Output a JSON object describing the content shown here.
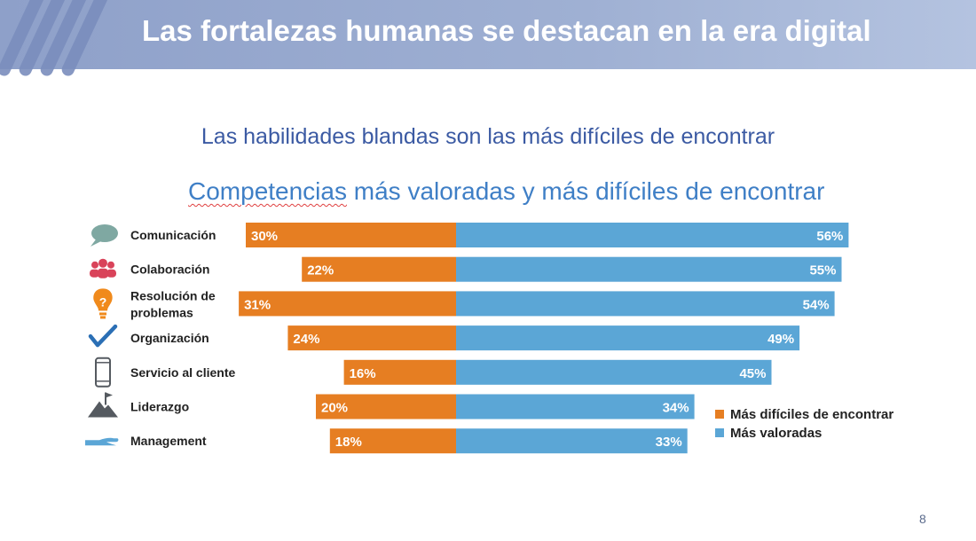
{
  "header": {
    "title": "Las fortalezas humanas se destacan en la era digital"
  },
  "subtitle": "Las habilidades blandas son las más difíciles de encontrar",
  "chart_title_underlined": "Competencias",
  "chart_title_rest": " más valoradas y más difíciles de encontrar",
  "page_number": "8",
  "colors": {
    "orange": "#e67e22",
    "blue": "#5ba6d6",
    "header": "#9aabd0"
  },
  "chart_data": {
    "type": "bar",
    "orientation": "diverging-horizontal",
    "title": "Competencias más valoradas y más difíciles de encontrar",
    "categories": [
      {
        "label": [
          "Comunicación"
        ],
        "icon": "speech-bubble-icon"
      },
      {
        "label": [
          "Colaboración"
        ],
        "icon": "people-icon"
      },
      {
        "label": [
          "Resolución de",
          "problemas"
        ],
        "icon": "lightbulb-question-icon"
      },
      {
        "label": [
          "Organización"
        ],
        "icon": "checkmark-icon"
      },
      {
        "label": [
          "Servicio al cliente"
        ],
        "icon": "phone-icon"
      },
      {
        "label": [
          "Liderazgo"
        ],
        "icon": "mountain-flag-icon"
      },
      {
        "label": [
          "Management"
        ],
        "icon": "hand-icon"
      }
    ],
    "series": [
      {
        "name": "Más difíciles de encontrar",
        "color": "#e67e22",
        "direction": "left",
        "values": [
          30,
          22,
          31,
          24,
          16,
          20,
          18
        ]
      },
      {
        "name": "Más valoradas",
        "color": "#5ba6d6",
        "direction": "right",
        "values": [
          56,
          55,
          54,
          49,
          45,
          34,
          33
        ]
      }
    ],
    "unit": "%",
    "legend_position": "bottom-right"
  }
}
